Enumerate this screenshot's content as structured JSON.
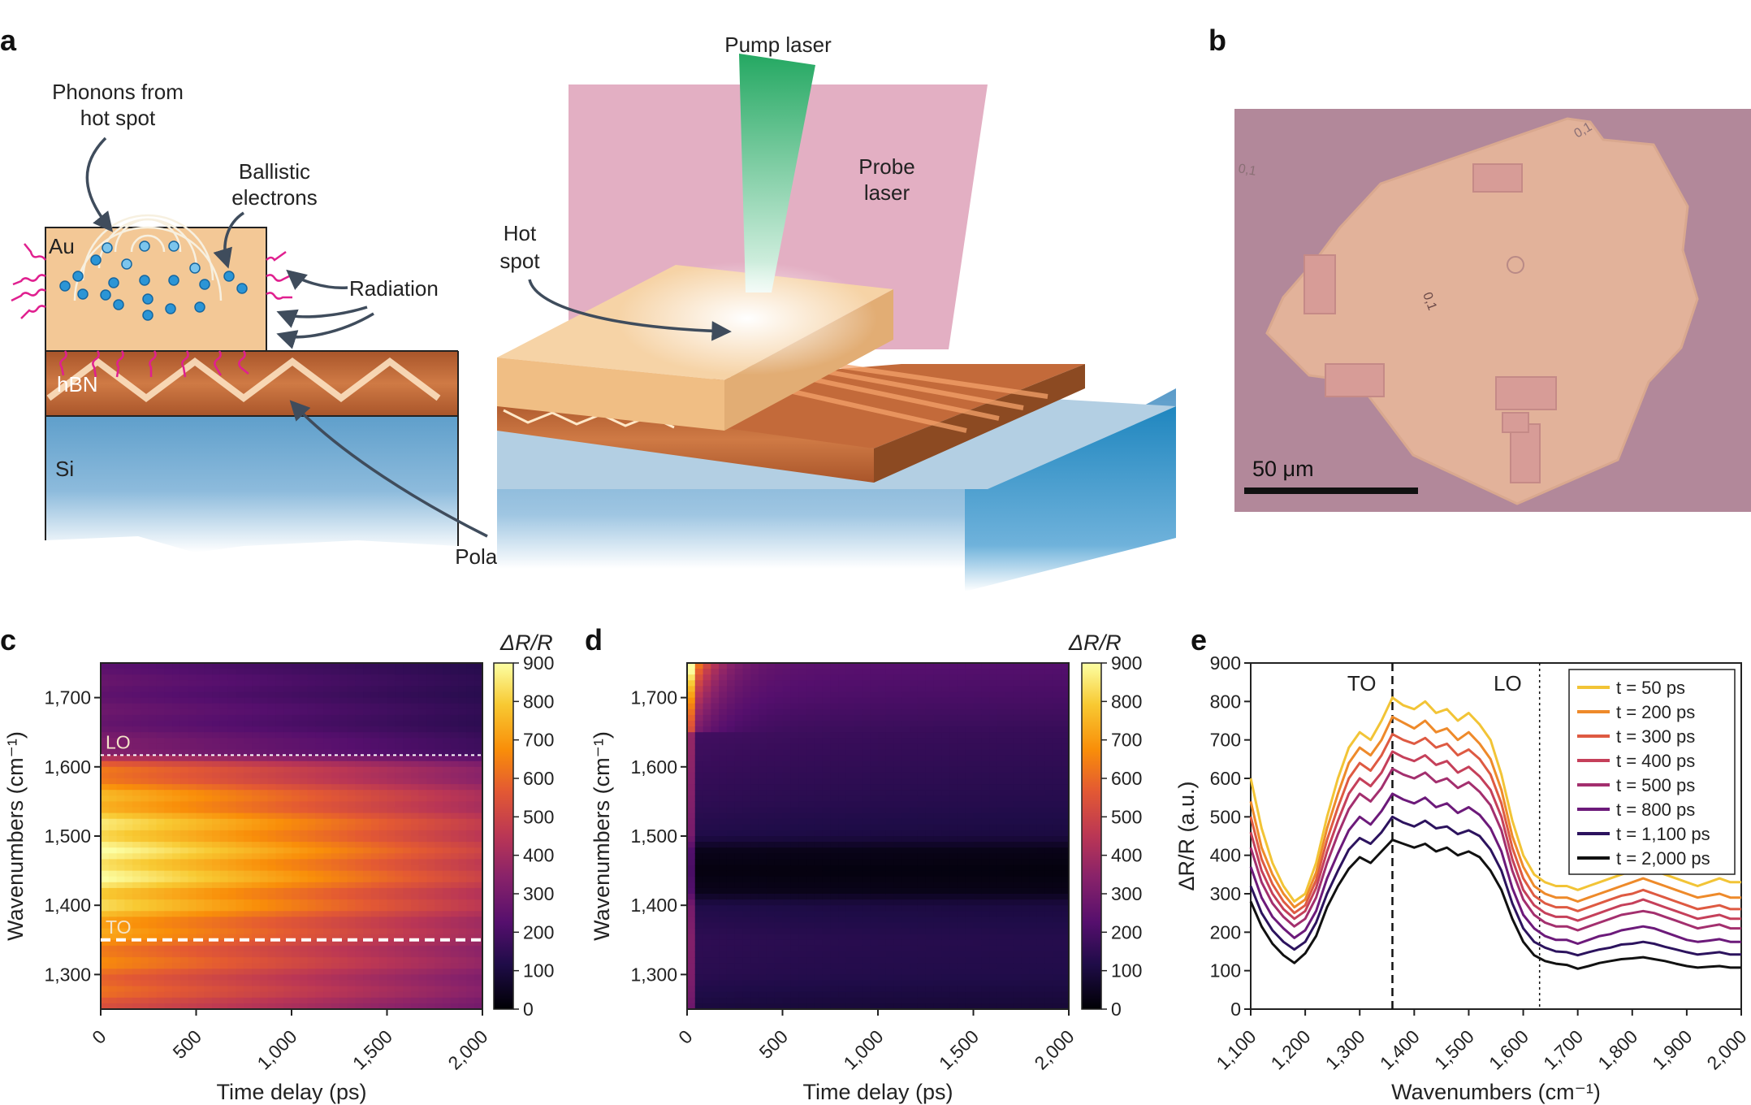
{
  "panels": {
    "a": "a",
    "b": "b",
    "c": "c",
    "d": "d",
    "e": "e"
  },
  "schematic": {
    "left": {
      "phonons": [
        "Phonons from",
        "hot spot"
      ],
      "ballistic": [
        "Ballistic",
        "electrons"
      ],
      "radiation": "Radiation",
      "au": "Au",
      "hbn": "hBN",
      "si": "Si",
      "polaritons": "Polaritons"
    },
    "right": {
      "pump": "Pump laser",
      "probe": [
        "Probe",
        "laser"
      ],
      "hotspot": [
        "Hot",
        "spot"
      ]
    }
  },
  "micrograph": {
    "marks": [
      "0,1",
      "0,1",
      "0,1"
    ],
    "scalebar": "50 μm"
  },
  "colors": {
    "gold": "#f3c896",
    "hbn": "#c36a3a",
    "si": "#6aa6cf",
    "pump": "#2fb26f",
    "probe": "#e0a6bd",
    "ballistic": "#2b95d6",
    "radiation": "#e0208f"
  },
  "chart_data": [
    {
      "type": "heatmap",
      "panel": "c",
      "xlabel": "Time delay (ps)",
      "ylabel": "Wavenumbers (cm⁻¹)",
      "xlim": [
        0,
        2000
      ],
      "ylim": [
        1250,
        1750
      ],
      "xticks": [
        "0",
        "500",
        "1,000",
        "1,500",
        "2,000"
      ],
      "yticks": [
        "1,300",
        "1,400",
        "1,500",
        "1,600",
        "1,700"
      ],
      "colorbar": {
        "label": "ΔR/R",
        "range": [
          0,
          900
        ],
        "ticks": [
          "0",
          "100",
          "200",
          "300",
          "400",
          "500",
          "600",
          "700",
          "800",
          "900"
        ]
      },
      "annotations": [
        {
          "text": "LO",
          "wavenumber": 1617,
          "style": "dotted"
        },
        {
          "text": "TO",
          "wavenumber": 1350,
          "style": "dashed"
        }
      ],
      "profile_wavenumber": [
        1250,
        1300,
        1350,
        1400,
        1450,
        1500,
        1550,
        1600,
        1620,
        1650,
        1700,
        1750
      ],
      "profile_value_t0": [
        560,
        620,
        680,
        800,
        880,
        860,
        760,
        600,
        350,
        280,
        260,
        250
      ],
      "decay_fraction_at_2000ps": 0.55
    },
    {
      "type": "heatmap",
      "panel": "d",
      "xlabel": "Time delay (ps)",
      "ylabel": "Wavenumbers (cm⁻¹)",
      "xlim": [
        0,
        2000
      ],
      "ylim": [
        1250,
        1750
      ],
      "xticks": [
        "0",
        "500",
        "1,000",
        "1,500",
        "2,000"
      ],
      "yticks": [
        "1,300",
        "1,400",
        "1,500",
        "1,600",
        "1,700"
      ],
      "colorbar": {
        "label": "ΔR/R",
        "range": [
          0,
          900
        ],
        "ticks": [
          "0",
          "100",
          "200",
          "300",
          "400",
          "500",
          "600",
          "700",
          "800",
          "900"
        ]
      },
      "profile_wavenumber": [
        1250,
        1300,
        1350,
        1400,
        1420,
        1450,
        1480,
        1500,
        1550,
        1600,
        1650,
        1700,
        1750
      ],
      "profile_value_late": [
        100,
        140,
        150,
        120,
        40,
        20,
        40,
        120,
        150,
        170,
        190,
        230,
        260
      ],
      "early_peak": 500,
      "early_peak_wavenumber": 1730
    },
    {
      "type": "line",
      "panel": "e",
      "xlabel": "Wavenumbers (cm⁻¹)",
      "ylabel": "ΔR/R (a.u.)",
      "xlim": [
        1100,
        2000
      ],
      "ylim": [
        0,
        900
      ],
      "xticks": [
        "1,100",
        "1,200",
        "1,300",
        "1,400",
        "1,500",
        "1,600",
        "1,700",
        "1,800",
        "1,900",
        "2,000"
      ],
      "yticks": [
        "0",
        "100",
        "200",
        "300",
        "400",
        "500",
        "600",
        "700",
        "800",
        "900"
      ],
      "annotations": [
        {
          "text": "TO",
          "x": 1360,
          "style": "dashed"
        },
        {
          "text": "LO",
          "x": 1630,
          "style": "dotted"
        }
      ],
      "x": [
        1100,
        1120,
        1140,
        1160,
        1180,
        1200,
        1220,
        1240,
        1260,
        1280,
        1300,
        1320,
        1340,
        1360,
        1380,
        1400,
        1420,
        1440,
        1460,
        1480,
        1500,
        1520,
        1540,
        1560,
        1580,
        1600,
        1620,
        1640,
        1660,
        1680,
        1700,
        1720,
        1740,
        1760,
        1780,
        1800,
        1820,
        1840,
        1860,
        1880,
        1900,
        1920,
        1940,
        1960,
        1980,
        2000
      ],
      "series": [
        {
          "name": "t = 50 ps",
          "color": "#f2c436",
          "values": [
            600,
            470,
            380,
            320,
            280,
            300,
            380,
            500,
            600,
            680,
            720,
            700,
            750,
            810,
            790,
            780,
            800,
            770,
            780,
            750,
            770,
            740,
            700,
            610,
            490,
            400,
            350,
            330,
            320,
            320,
            310,
            320,
            330,
            340,
            350,
            360,
            370,
            360,
            350,
            340,
            330,
            320,
            330,
            340,
            330,
            330
          ]
        },
        {
          "name": "t = 200 ps",
          "color": "#ee8a2a",
          "values": [
            540,
            420,
            350,
            300,
            265,
            285,
            355,
            470,
            560,
            640,
            680,
            660,
            700,
            760,
            745,
            730,
            750,
            720,
            730,
            700,
            720,
            690,
            650,
            570,
            450,
            370,
            320,
            300,
            290,
            290,
            280,
            290,
            300,
            310,
            320,
            330,
            340,
            330,
            320,
            310,
            300,
            290,
            295,
            300,
            290,
            290
          ]
        },
        {
          "name": "t = 300 ps",
          "color": "#de5a42",
          "values": [
            500,
            390,
            325,
            280,
            250,
            270,
            335,
            440,
            525,
            600,
            640,
            620,
            660,
            715,
            700,
            690,
            705,
            680,
            690,
            660,
            675,
            650,
            610,
            535,
            420,
            340,
            295,
            275,
            265,
            265,
            255,
            265,
            275,
            285,
            295,
            300,
            310,
            300,
            290,
            280,
            270,
            260,
            265,
            270,
            260,
            260
          ]
        },
        {
          "name": "t = 400 ps",
          "color": "#c5405a",
          "values": [
            460,
            360,
            300,
            260,
            235,
            255,
            315,
            410,
            490,
            560,
            600,
            580,
            615,
            670,
            655,
            645,
            660,
            635,
            645,
            615,
            630,
            605,
            570,
            500,
            390,
            310,
            270,
            250,
            240,
            240,
            230,
            240,
            250,
            260,
            270,
            275,
            285,
            275,
            265,
            255,
            245,
            235,
            240,
            245,
            235,
            235
          ]
        },
        {
          "name": "t = 500 ps",
          "color": "#a32f6e",
          "values": [
            420,
            330,
            275,
            240,
            215,
            235,
            290,
            380,
            455,
            520,
            560,
            540,
            575,
            625,
            610,
            600,
            615,
            590,
            600,
            575,
            590,
            565,
            530,
            465,
            360,
            285,
            245,
            225,
            215,
            215,
            205,
            215,
            225,
            235,
            245,
            250,
            255,
            250,
            240,
            230,
            220,
            210,
            215,
            220,
            210,
            210
          ]
        },
        {
          "name": "t = 800 ps",
          "color": "#6c1a7a",
          "values": [
            370,
            290,
            240,
            210,
            185,
            205,
            255,
            340,
            405,
            465,
            500,
            480,
            515,
            560,
            545,
            535,
            550,
            525,
            535,
            510,
            525,
            505,
            470,
            410,
            315,
            245,
            210,
            190,
            180,
            180,
            170,
            180,
            190,
            195,
            205,
            210,
            215,
            210,
            200,
            190,
            180,
            175,
            178,
            182,
            175,
            175
          ]
        },
        {
          "name": "t = 1,100 ps",
          "color": "#2c135e",
          "values": [
            320,
            250,
            205,
            175,
            155,
            175,
            225,
            300,
            360,
            415,
            445,
            430,
            460,
            500,
            485,
            475,
            490,
            470,
            475,
            455,
            465,
            450,
            415,
            360,
            275,
            210,
            175,
            160,
            150,
            148,
            140,
            148,
            155,
            160,
            168,
            170,
            175,
            170,
            162,
            155,
            148,
            142,
            145,
            148,
            142,
            142
          ]
        },
        {
          "name": "t = 2,000 ps",
          "color": "#111111",
          "values": [
            280,
            215,
            170,
            140,
            120,
            145,
            190,
            265,
            320,
            365,
            395,
            380,
            410,
            440,
            430,
            420,
            430,
            410,
            420,
            400,
            410,
            395,
            360,
            310,
            235,
            175,
            140,
            125,
            118,
            115,
            105,
            112,
            120,
            125,
            130,
            132,
            135,
            130,
            125,
            118,
            112,
            108,
            110,
            112,
            108,
            108
          ]
        }
      ]
    }
  ]
}
